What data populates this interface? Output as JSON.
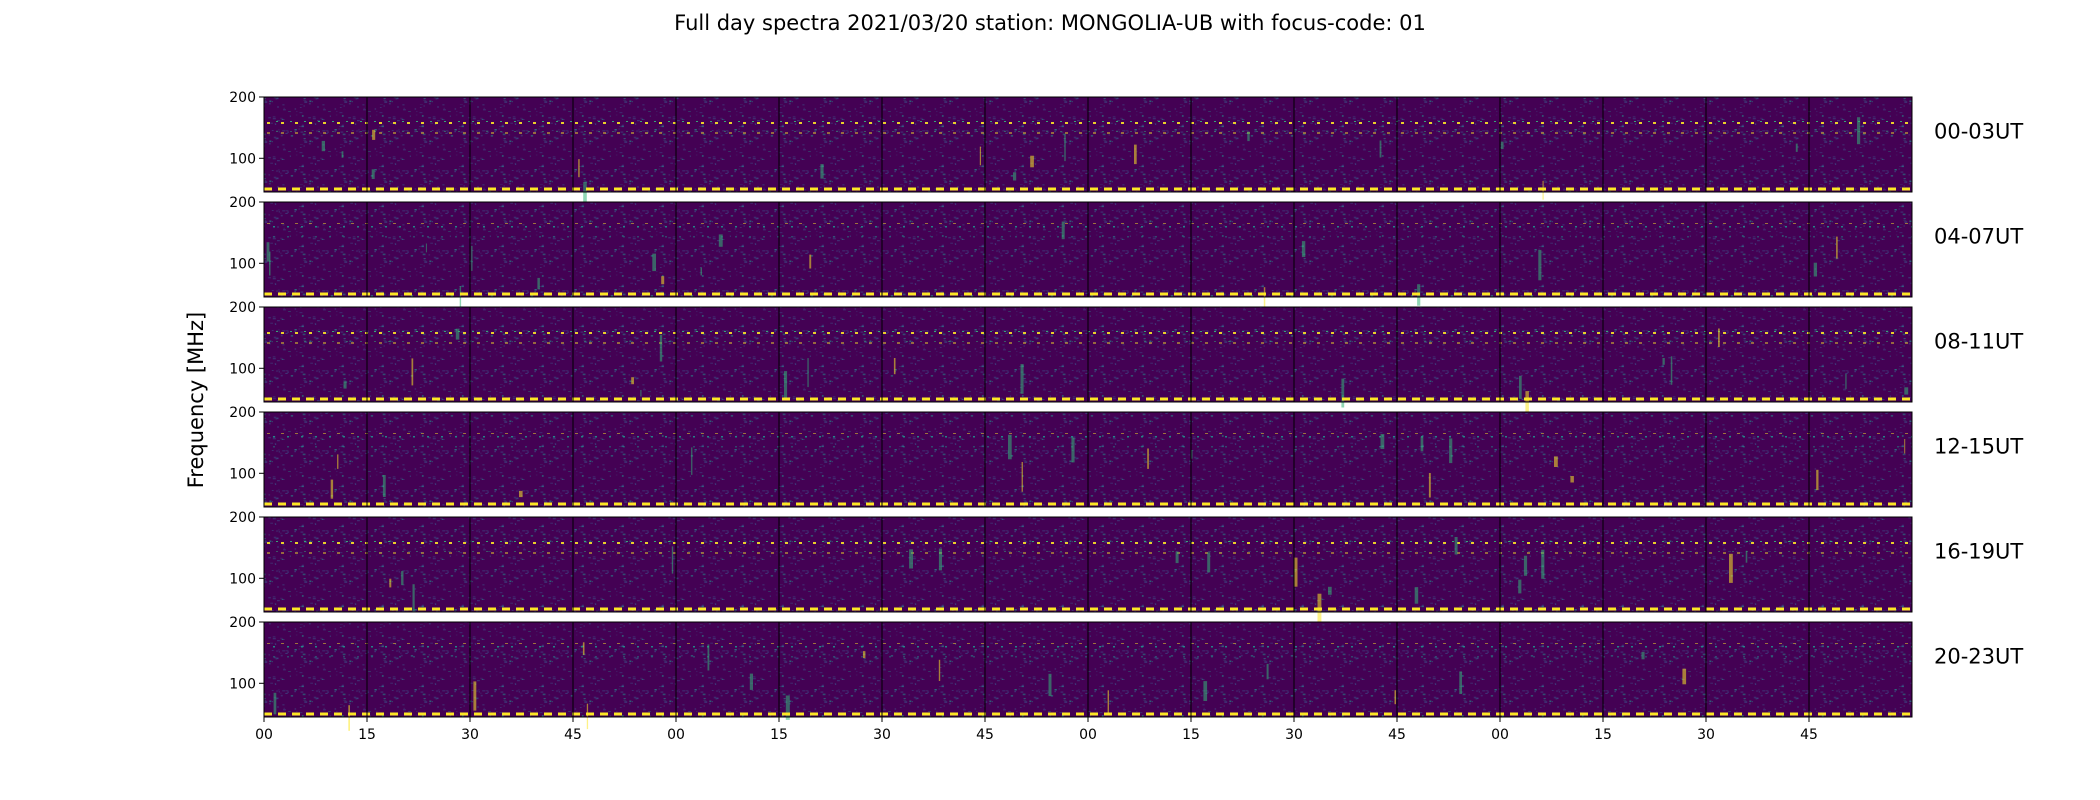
{
  "chart_data": {
    "type": "heatmap",
    "title": "Full day spectra 2021/03/20 station: MONGOLIA-UB with focus-code: 01",
    "ylabel": "Frequency [MHz]",
    "xlabel": "",
    "colormap": "viridis",
    "colors": {
      "low": "#440154",
      "mid": "#31688e",
      "high_mid": "#35b779",
      "high": "#fde725"
    },
    "ylim": [
      45,
      200
    ],
    "y_ticks": [
      "100",
      "200"
    ],
    "x_ticks": [
      "00",
      "15",
      "30",
      "45",
      "00",
      "15",
      "30",
      "45",
      "00",
      "15",
      "30",
      "45",
      "00",
      "15",
      "30",
      "45"
    ],
    "grid": false,
    "panels_per_row": 16,
    "minutes_per_panel": 15,
    "rows": [
      {
        "label": "00-03UT",
        "bursts": []
      },
      {
        "label": "04-07UT",
        "bursts": []
      },
      {
        "label": "08-11UT",
        "bursts": []
      },
      {
        "label": "12-15UT",
        "bursts": []
      },
      {
        "label": "16-19UT",
        "bursts": []
      },
      {
        "label": "20-23UT",
        "bursts": []
      }
    ]
  }
}
